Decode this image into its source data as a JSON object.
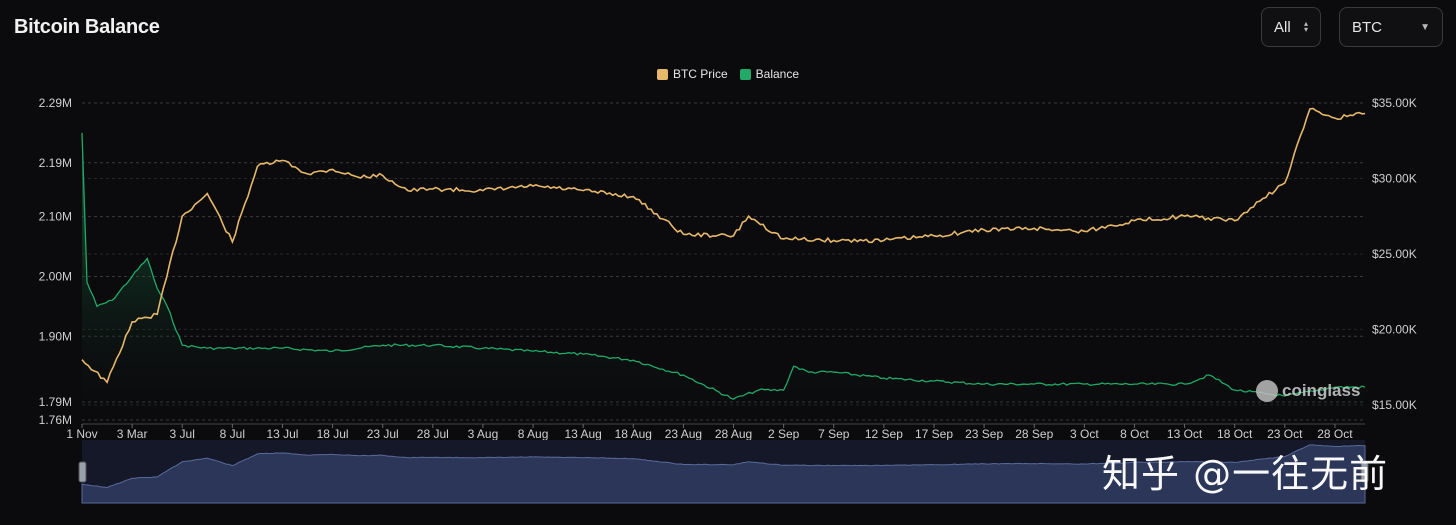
{
  "title": "Bitcoin Balance",
  "controls": {
    "range": {
      "value": "All"
    },
    "asset": {
      "value": "BTC"
    }
  },
  "colors": {
    "price": "#e6b86a",
    "balance": "#21a968",
    "navigator": "#2b3658",
    "grid": "#3a3a3a"
  },
  "watermark": "知乎 @一往无前",
  "brand": "coinglass",
  "chart_data": {
    "type": "line",
    "legend": [
      "BTC Price",
      "Balance"
    ],
    "legend_position": "top-center",
    "grid": true,
    "x_labels": [
      "1 Nov",
      "3 Mar",
      "3 Jul",
      "8 Jul",
      "13 Jul",
      "18 Jul",
      "23 Jul",
      "28 Jul",
      "3 Aug",
      "8 Aug",
      "13 Aug",
      "18 Aug",
      "23 Aug",
      "28 Aug",
      "2 Sep",
      "7 Sep",
      "12 Sep",
      "17 Sep",
      "23 Sep",
      "28 Sep",
      "3 Oct",
      "8 Oct",
      "13 Oct",
      "18 Oct",
      "23 Oct",
      "28 Oct"
    ],
    "y_left": {
      "ticks": [
        "2.29M",
        "2.19M",
        "2.10M",
        "2.00M",
        "1.90M",
        "1.79M",
        "1.76M"
      ],
      "tick_values": [
        2.29,
        2.19,
        2.1,
        2.0,
        1.9,
        1.79,
        1.76
      ],
      "range": [
        1.76,
        2.29
      ]
    },
    "y_right": {
      "ticks": [
        "$35.00K",
        "$30.00K",
        "$25.00K",
        "$20.00K",
        "$15.00K"
      ],
      "tick_values": [
        35000,
        30000,
        25000,
        20000,
        15000
      ],
      "range": [
        14000,
        35000
      ]
    },
    "series": [
      {
        "name": "BTC Price",
        "axis": "right",
        "x": [
          0,
          0.5,
          1,
          1.5,
          2,
          2.5,
          3,
          3.5,
          4,
          4.5,
          5,
          5.5,
          6,
          6.5,
          7,
          8,
          9,
          10,
          11,
          12,
          13,
          13.3,
          14,
          15,
          16,
          17,
          18,
          19,
          20,
          21,
          22,
          23,
          23.5,
          24,
          24.5,
          25,
          25.6
        ],
        "values": [
          18000,
          16500,
          20500,
          21000,
          27500,
          29000,
          25800,
          30800,
          31200,
          30300,
          30600,
          30100,
          30200,
          29200,
          29300,
          29200,
          29500,
          29200,
          28800,
          26300,
          26200,
          27500,
          26000,
          25900,
          25900,
          26200,
          26600,
          26700,
          26500,
          27200,
          27500,
          27200,
          28500,
          29700,
          34600,
          34000,
          34300
        ]
      },
      {
        "name": "Balance",
        "axis": "left",
        "x": [
          0,
          0.1,
          0.3,
          0.6,
          1,
          1.3,
          1.5,
          1.7,
          2,
          2.5,
          3,
          4,
          5,
          6,
          7,
          8,
          9,
          10,
          11,
          12,
          13,
          13.5,
          14,
          14.2,
          14.5,
          15,
          16,
          17,
          18,
          19,
          20,
          21,
          22,
          22.5,
          23,
          24,
          25,
          25.6
        ],
        "values": [
          2.24,
          1.99,
          1.95,
          1.96,
          2.0,
          2.03,
          1.98,
          1.95,
          1.885,
          1.88,
          1.88,
          1.88,
          1.875,
          1.885,
          1.885,
          1.88,
          1.875,
          1.87,
          1.86,
          1.835,
          1.795,
          1.81,
          1.81,
          1.85,
          1.84,
          1.84,
          1.83,
          1.825,
          1.82,
          1.82,
          1.82,
          1.82,
          1.82,
          1.835,
          1.81,
          1.8,
          1.815,
          1.815
        ]
      }
    ]
  }
}
